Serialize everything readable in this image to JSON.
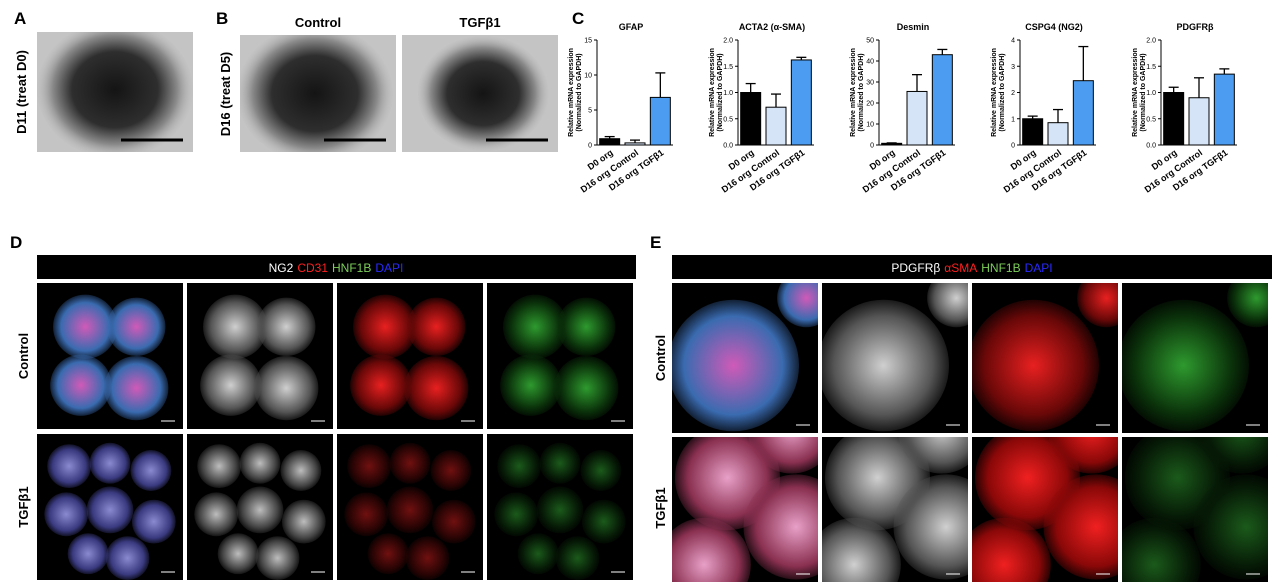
{
  "panels": {
    "A": {
      "label": "A",
      "row_label": "D11 (treat D0)"
    },
    "B": {
      "label": "B",
      "row_label": "D16 (treat D5)",
      "columns": [
        "Control",
        "TGFβ1"
      ]
    },
    "C": {
      "label": "C"
    },
    "D": {
      "label": "D",
      "stains": [
        "NG2",
        "CD31",
        "HNF1B",
        "DAPI"
      ],
      "stain_colors": [
        "#ffffff",
        "#ff2020",
        "#7ccf5a",
        "#2a2aff"
      ],
      "rows": [
        "Control",
        "TGFβ1"
      ]
    },
    "E": {
      "label": "E",
      "stains": [
        "PDGFRβ",
        "αSMA",
        "HNF1B",
        "DAPI"
      ],
      "stain_colors": [
        "#ffffff",
        "#ff2020",
        "#7ccf5a",
        "#2a2aff"
      ],
      "rows": [
        "Control",
        "TGFβ1"
      ]
    }
  },
  "chart_data": [
    {
      "type": "bar",
      "title": "GFAP",
      "ylabel": [
        "Relative mRNA expression",
        "(Normalized to GAPDH)"
      ],
      "categories": [
        "D0 org",
        "D16 org Control",
        "D16 org TGFβ1"
      ],
      "values": [
        0.9,
        0.3,
        6.8
      ],
      "errors": [
        0.3,
        0.4,
        3.5
      ],
      "colors": [
        "#000000",
        "#d6e4f7",
        "#4c9df2"
      ],
      "ylim": [
        0,
        15
      ],
      "yticks": [
        0,
        5,
        10,
        15
      ]
    },
    {
      "type": "bar",
      "title": "ACTA2 (α-SMA)",
      "ylabel": [
        "Relative mRNA expression",
        "(Normalized to GAPDH)"
      ],
      "categories": [
        "D0 org",
        "D16 org Control",
        "D16 org TGFβ1"
      ],
      "values": [
        1.0,
        0.72,
        1.62
      ],
      "errors": [
        0.17,
        0.25,
        0.05
      ],
      "colors": [
        "#000000",
        "#d6e4f7",
        "#4c9df2"
      ],
      "ylim": [
        0,
        2
      ],
      "yticks": [
        {
          "value": 0,
          "label": "0.0"
        },
        0.5,
        {
          "value": 1,
          "label": "1.0"
        },
        1.5,
        {
          "value": 2,
          "label": "2.0"
        }
      ]
    },
    {
      "type": "bar",
      "title": "Desmin",
      "ylabel": [
        "Relative mRNA expression",
        "(Normalized to GAPDH)"
      ],
      "categories": [
        "D0 org",
        "D16 org Control",
        "D16 org TGFβ1"
      ],
      "values": [
        0.8,
        25.5,
        43
      ],
      "errors": [
        0.2,
        8,
        2.5
      ],
      "colors": [
        "#000000",
        "#d6e4f7",
        "#4c9df2"
      ],
      "ylim": [
        0,
        50
      ],
      "yticks": [
        0,
        10,
        20,
        30,
        40,
        50
      ]
    },
    {
      "type": "bar",
      "title": "CSPG4 (NG2)",
      "ylabel": [
        "Relative mRNA expression",
        "(Normalized to GAPDH)"
      ],
      "categories": [
        "D0 org",
        "D16 org Control",
        "D16 org TGFβ1"
      ],
      "values": [
        1.0,
        0.85,
        2.45
      ],
      "errors": [
        0.1,
        0.5,
        1.3
      ],
      "colors": [
        "#000000",
        "#d6e4f7",
        "#4c9df2"
      ],
      "ylim": [
        0,
        4
      ],
      "yticks": [
        0,
        1,
        2,
        3,
        4
      ]
    },
    {
      "type": "bar",
      "title": "PDGFRβ",
      "ylabel": [
        "Relative mRNA expression",
        "(Normalized to GAPDH)"
      ],
      "categories": [
        "D0 org",
        "D16 org Control",
        "D16 org TGFβ1"
      ],
      "values": [
        1.0,
        0.9,
        1.35
      ],
      "errors": [
        0.1,
        0.38,
        0.1
      ],
      "colors": [
        "#000000",
        "#d6e4f7",
        "#4c9df2"
      ],
      "ylim": [
        0,
        2
      ],
      "yticks": [
        {
          "value": 0,
          "label": "0.0"
        },
        0.5,
        {
          "value": 1,
          "label": "1.0"
        },
        1.5,
        {
          "value": 2,
          "label": "2.0"
        }
      ]
    }
  ]
}
